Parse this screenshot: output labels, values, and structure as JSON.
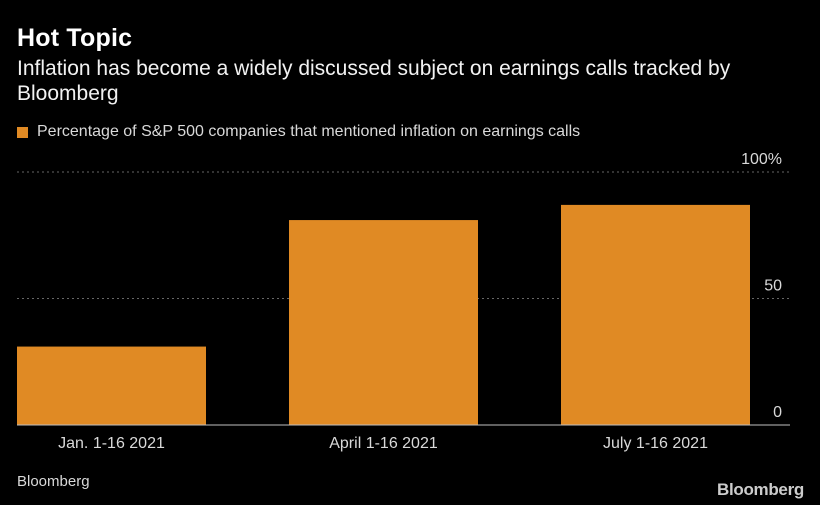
{
  "header": {
    "title": "Hot Topic",
    "subtitle": "Inflation has become a widely discussed subject on earnings calls tracked by Bloomberg"
  },
  "legend": {
    "label": "Percentage of S&P 500 companies that mentioned inflation on earnings calls"
  },
  "footer": {
    "source": "Bloomberg",
    "logo": "Bloomberg"
  },
  "colors": {
    "bar": "#E08A24",
    "background": "#000000",
    "gridline": "#666666",
    "axis_text": "#d9d9d9"
  },
  "chart_data": {
    "type": "bar",
    "title": "Hot Topic",
    "categories": [
      "Jan. 1-16 2021",
      "April 1-16 2021",
      "July 1-16 2021"
    ],
    "series": [
      {
        "name": "Percentage of S&P 500 companies that mentioned inflation on earnings calls",
        "values": [
          31,
          81,
          87
        ]
      }
    ],
    "ylim": [
      0,
      100
    ],
    "yticks": [
      0,
      50,
      100
    ],
    "ytick_labels": [
      "0",
      "50",
      "100%"
    ],
    "xlabel": "",
    "ylabel": "",
    "grid": true
  }
}
